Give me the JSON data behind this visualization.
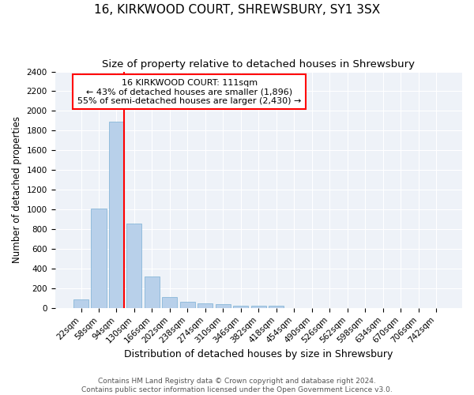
{
  "title": "16, KIRKWOOD COURT, SHREWSBURY, SY1 3SX",
  "subtitle": "Size of property relative to detached houses in Shrewsbury",
  "xlabel": "Distribution of detached houses by size in Shrewsbury",
  "ylabel": "Number of detached properties",
  "footer_line1": "Contains HM Land Registry data © Crown copyright and database right 2024.",
  "footer_line2": "Contains public sector information licensed under the Open Government Licence v3.0.",
  "categories": [
    "22sqm",
    "58sqm",
    "94sqm",
    "130sqm",
    "166sqm",
    "202sqm",
    "238sqm",
    "274sqm",
    "310sqm",
    "346sqm",
    "382sqm",
    "418sqm",
    "454sqm",
    "490sqm",
    "526sqm",
    "562sqm",
    "598sqm",
    "634sqm",
    "670sqm",
    "706sqm",
    "742sqm"
  ],
  "values": [
    90,
    1010,
    1890,
    860,
    320,
    115,
    60,
    50,
    35,
    20,
    20,
    25,
    0,
    0,
    0,
    0,
    0,
    0,
    0,
    0,
    0
  ],
  "bar_color": "#b8d0ea",
  "bar_edge_color": "#7aafd4",
  "vline_color": "red",
  "vline_x_index": 2.43,
  "annotation_text_line1": "16 KIRKWOOD COURT: 111sqm",
  "annotation_text_line2": "← 43% of detached houses are smaller (1,896)",
  "annotation_text_line3": "55% of semi-detached houses are larger (2,430) →",
  "ylim": [
    0,
    2400
  ],
  "yticks": [
    0,
    200,
    400,
    600,
    800,
    1000,
    1200,
    1400,
    1600,
    1800,
    2000,
    2200,
    2400
  ],
  "bg_color": "#eef2f8",
  "grid_color": "white",
  "title_fontsize": 11,
  "subtitle_fontsize": 9.5,
  "xlabel_fontsize": 9,
  "ylabel_fontsize": 8.5,
  "tick_fontsize": 7.5,
  "annotation_fontsize": 8,
  "footer_fontsize": 6.5
}
